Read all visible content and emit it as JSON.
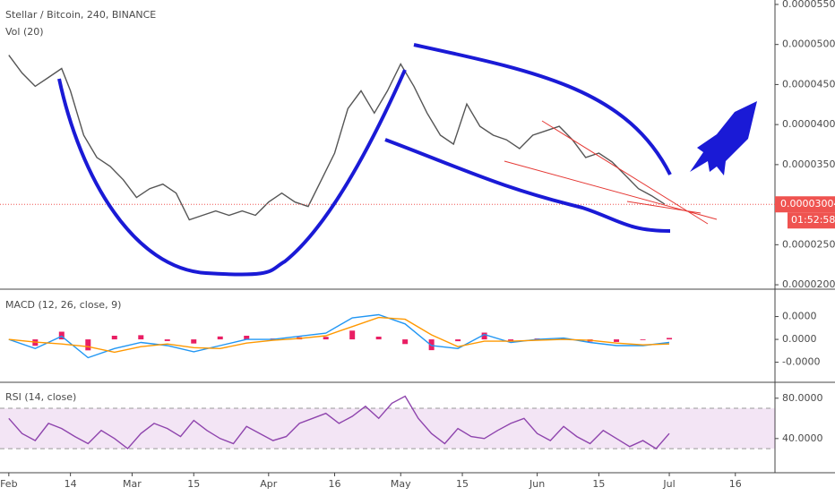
{
  "chart_data": [
    {
      "type": "line",
      "title": "Stellar / Bitcoin, 240, BINANCE",
      "indicator": "Vol (20)",
      "x": [
        0,
        3,
        6,
        9,
        12,
        14,
        17,
        20,
        23,
        26,
        29,
        32,
        35,
        38,
        41,
        44,
        47,
        50,
        53,
        56,
        59,
        62,
        65,
        68,
        71,
        74,
        77,
        80,
        83,
        86,
        89,
        92,
        95,
        98,
        101,
        104,
        107,
        110,
        113,
        116,
        119,
        122,
        125,
        128,
        131,
        134,
        137,
        140,
        143,
        146,
        149
      ],
      "series": [
        {
          "color": "#555555",
          "values": [
            4.867e-05,
            4.644e-05,
            4.478e-05,
            4.589e-05,
            4.7e-05,
            4.422e-05,
            3.867e-05,
            3.589e-05,
            3.478e-05,
            3.311e-05,
            3.089e-05,
            3.2e-05,
            3.256e-05,
            3.144e-05,
            2.811e-05,
            2.867e-05,
            2.922e-05,
            2.867e-05,
            2.922e-05,
            2.867e-05,
            3.033e-05,
            3.144e-05,
            3.033e-05,
            2.978e-05,
            3.311e-05,
            3.644e-05,
            4.2e-05,
            4.422e-05,
            4.144e-05,
            4.422e-05,
            4.756e-05,
            4.478e-05,
            4.144e-05,
            3.867e-05,
            3.756e-05,
            4.256e-05,
            3.978e-05,
            3.867e-05,
            3.811e-05,
            3.7e-05,
            3.867e-05,
            3.922e-05,
            3.978e-05,
            3.811e-05,
            3.589e-05,
            3.644e-05,
            3.533e-05,
            3.367e-05,
            3.2e-05,
            3.111e-05,
            3.004e-05
          ]
        }
      ],
      "xlim": [
        -2,
        174
      ],
      "ylim": [
        1.956e-05,
        5.533e-05
      ],
      "yticks": [
        {
          "value": 5.5e-05,
          "label": "0.00005500"
        },
        {
          "value": 5e-05,
          "label": "0.00005000"
        },
        {
          "value": 4.5e-05,
          "label": "0.00004500"
        },
        {
          "value": 4e-05,
          "label": "0.00004000"
        },
        {
          "value": 3.5e-05,
          "label": "0.00003500"
        },
        {
          "value": 3e-05,
          "label": "0.00003000"
        },
        {
          "value": 2.5e-05,
          "label": "0.00002500"
        },
        {
          "value": 2e-05,
          "label": "0.00002000"
        }
      ],
      "last_price": 3.004e-05,
      "last_price_color": "#ef5350",
      "countdown": "01:52:58"
    },
    {
      "type": "line",
      "title": "MACD (12, 26, close, 9)",
      "x": [
        0,
        6,
        12,
        18,
        24,
        30,
        36,
        42,
        48,
        54,
        60,
        66,
        72,
        78,
        84,
        90,
        96,
        102,
        108,
        114,
        120,
        126,
        132,
        138,
        144,
        150
      ],
      "series": [
        {
          "style": "bar",
          "color": "#e91e63",
          "values": [
            0,
            -7e-07,
            8.4e-07,
            -1.2e-06,
            4e-07,
            4.6e-07,
            -1.8e-07,
            -4.5e-07,
            3.2e-07,
            4e-07,
            1e-07,
            2.4e-07,
            2.8e-07,
            9.6e-07,
            3e-07,
            -5.1e-07,
            -1.18e-06,
            -2e-07,
            7.4e-07,
            -1.4e-07,
            1e-07,
            1.4e-07,
            -2.4e-07,
            -2.8e-07,
            -8e-08,
            1.6e-07
          ]
        },
        {
          "color": "#2196f3",
          "values": [
            0,
            -1e-06,
            3.4e-07,
            -2e-06,
            -1e-06,
            -3.4e-07,
            -6.8e-07,
            -1.35e-06,
            -6.8e-07,
            0,
            0,
            3.4e-07,
            6.8e-07,
            2.36e-06,
            2.7e-06,
            1.69e-06,
            -6.8e-07,
            -1e-06,
            5.4e-07,
            -3.4e-07,
            0,
            1.4e-07,
            -3.4e-07,
            -6.8e-07,
            -6.8e-07,
            -3.4e-07
          ]
        },
        {
          "color": "#ff9800",
          "values": [
            0,
            -3e-07,
            -5e-07,
            -8e-07,
            -1.4e-06,
            -8e-07,
            -5e-07,
            -9e-07,
            -1e-06,
            -4e-07,
            -1e-07,
            1e-07,
            4e-07,
            1.4e-06,
            2.4e-06,
            2.2e-06,
            5e-07,
            -8e-07,
            -2e-07,
            -2e-07,
            -1e-07,
            0,
            -1e-07,
            -4e-07,
            -6e-07,
            -5e-07
          ]
        }
      ],
      "xlim": [
        -2,
        174
      ],
      "ylim": [
        -4.5e-06,
        5.2e-06
      ],
      "yticks": [
        {
          "value": 2.5e-06,
          "label": "0.0000"
        },
        {
          "value": 0,
          "label": "0.0000"
        },
        {
          "value": -2.5e-06,
          "label": "-0.0000"
        }
      ]
    },
    {
      "type": "line",
      "title": "RSI (14, close)",
      "x": [
        0,
        3,
        6,
        9,
        12,
        15,
        18,
        21,
        24,
        27,
        30,
        33,
        36,
        39,
        42,
        45,
        48,
        51,
        54,
        57,
        60,
        63,
        66,
        69,
        72,
        75,
        78,
        81,
        84,
        87,
        90,
        93,
        96,
        99,
        102,
        105,
        108,
        111,
        114,
        117,
        120,
        123,
        126,
        129,
        132,
        135,
        138,
        141,
        144,
        147,
        150
      ],
      "series": [
        {
          "color": "#8e44ad",
          "values": [
            60,
            45,
            38,
            55,
            50,
            42,
            35,
            48,
            40,
            30,
            45,
            55,
            50,
            42,
            58,
            48,
            40,
            35,
            52,
            45,
            38,
            42,
            55,
            60,
            65,
            55,
            62,
            72,
            60,
            75,
            82,
            60,
            45,
            35,
            50,
            42,
            40,
            48,
            55,
            60,
            45,
            38,
            52,
            42,
            35,
            48,
            40,
            32,
            38,
            30,
            45
          ]
        }
      ],
      "band": [
        30,
        70
      ],
      "band_color": "#9c27b0",
      "xlim": [
        -2,
        174
      ],
      "ylim": [
        7,
        94
      ],
      "yticks": [
        {
          "value": 80,
          "label": "80.0000"
        },
        {
          "value": 40,
          "label": "40.0000"
        }
      ],
      "xticks": [
        {
          "value": 0,
          "label": "Feb"
        },
        14,
        {
          "value": 28,
          "label": "Mar"
        },
        {
          "value": 42,
          "label": "15"
        },
        {
          "value": 59,
          "label": "Apr"
        },
        {
          "value": 74,
          "label": "16"
        },
        {
          "value": 89,
          "label": "May"
        },
        {
          "value": 103,
          "label": "15"
        },
        {
          "value": 120,
          "label": "Jun"
        },
        {
          "value": 134,
          "label": "15"
        },
        {
          "value": 150,
          "label": "Jul"
        },
        {
          "value": 165,
          "label": "16"
        }
      ]
    }
  ]
}
